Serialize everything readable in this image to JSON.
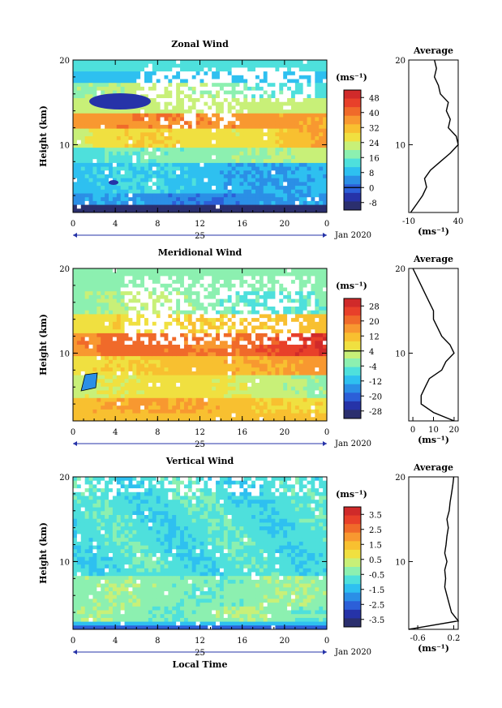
{
  "panels": [
    {
      "id": "zonal",
      "title": "Zonal Wind",
      "ylabel": "Height (km)",
      "yticks": [
        "20",
        "10"
      ],
      "xticks": [
        "0",
        "4",
        "8",
        "12",
        "16",
        "20",
        "0"
      ],
      "day_label": "25",
      "date_label": "Jan 2020",
      "unit_label": "(ms⁻¹)",
      "colorbar_labels": [
        "48",
        "40",
        "32",
        "24",
        "16",
        "8",
        "0",
        "-8"
      ],
      "avg_title": "Average",
      "avg_yticks": [
        "20",
        "10"
      ],
      "avg_xticks": [
        "-10",
        "40"
      ],
      "avg_unit": "(ms⁻¹)"
    },
    {
      "id": "meridional",
      "title": "Meridional Wind",
      "ylabel": "Height (km)",
      "yticks": [
        "20",
        "10"
      ],
      "xticks": [
        "0",
        "4",
        "8",
        "12",
        "16",
        "20",
        "0"
      ],
      "day_label": "25",
      "date_label": "Jan 2020",
      "unit_label": "(ms⁻¹)",
      "colorbar_labels": [
        "28",
        "20",
        "12",
        "4",
        "-4",
        "-12",
        "-20",
        "-28"
      ],
      "avg_title": "Average",
      "avg_yticks": [
        "20",
        "10"
      ],
      "avg_xticks": [
        "0",
        "10",
        "20"
      ],
      "avg_unit": "(ms⁻¹)"
    },
    {
      "id": "vertical",
      "title": "Vertical Wind",
      "ylabel": "Height (km)",
      "yticks": [
        "20",
        "10"
      ],
      "xticks": [
        "0",
        "4",
        "8",
        "12",
        "16",
        "20",
        "0"
      ],
      "day_label": "25",
      "date_label": "Jan 2020",
      "unit_label": "(ms⁻¹)",
      "colorbar_labels": [
        "3.5",
        "2.5",
        "1.5",
        "0.5",
        "-0.5",
        "-1.5",
        "-2.5",
        "-3.5"
      ],
      "avg_title": "Average",
      "avg_yticks": [
        "20",
        "10"
      ],
      "avg_xticks": [
        "-0.6",
        "0.2"
      ],
      "avg_unit": "(ms⁻¹)",
      "xlabel": "Local Time"
    }
  ],
  "palette": [
    "#2b2f6e",
    "#2633a8",
    "#2c5fd8",
    "#2b8fe6",
    "#2ec0f0",
    "#4ee0dc",
    "#8cf0b0",
    "#c8f078",
    "#f0e040",
    "#f8c030",
    "#f89830",
    "#f06a2a",
    "#e8402a",
    "#d02a2a"
  ],
  "chart_data": [
    {
      "type": "heatmap",
      "title": "Zonal Wind",
      "xlabel": "",
      "ylabel": "Height (km)",
      "xlim": [
        0,
        24
      ],
      "ylim": [
        2,
        20
      ],
      "colorbar_levels": [
        -8,
        0,
        8,
        16,
        24,
        32,
        40,
        48
      ],
      "z_approx_by_height": {
        "x": [
          2,
          4,
          6,
          8,
          10,
          12,
          14,
          16,
          18,
          19
        ],
        "z": [
          2,
          12,
          6,
          12,
          28,
          34,
          18,
          20,
          24,
          22
        ]
      }
    },
    {
      "type": "line",
      "title": "Average",
      "xlabel": "(ms⁻¹)",
      "ylabel": "",
      "xlim": [
        -10,
        40
      ],
      "ylim": [
        2,
        20
      ],
      "series": [
        {
          "x": [
            -8,
            -2,
            4,
            8,
            6,
            12,
            22,
            32,
            40,
            38,
            30,
            32,
            28,
            30,
            22,
            20,
            16,
            18,
            16
          ],
          "y": [
            2,
            3,
            4,
            5,
            6,
            7,
            8,
            9,
            10,
            11,
            12,
            13,
            14,
            15,
            16,
            17,
            18,
            19,
            20
          ]
        }
      ]
    },
    {
      "type": "heatmap",
      "title": "Meridional Wind",
      "xlabel": "",
      "ylabel": "Height (km)",
      "xlim": [
        0,
        24
      ],
      "ylim": [
        2,
        20
      ],
      "colorbar_levels": [
        -28,
        -20,
        -12,
        -4,
        4,
        12,
        20,
        28
      ],
      "z_approx_by_height": {
        "x": [
          2,
          4,
          6,
          8,
          10,
          12,
          14,
          16,
          18,
          19
        ],
        "z": [
          18,
          8,
          4,
          10,
          20,
          16,
          6,
          2,
          4,
          2
        ]
      }
    },
    {
      "type": "line",
      "title": "Average",
      "xlabel": "(ms⁻¹)",
      "ylabel": "",
      "xlim": [
        -2,
        22
      ],
      "ylim": [
        2,
        20
      ],
      "series": [
        {
          "x": [
            20,
            10,
            4,
            4,
            6,
            8,
            14,
            16,
            20,
            18,
            14,
            12,
            10,
            10,
            8,
            6,
            4,
            2,
            0
          ],
          "y": [
            2,
            3,
            4,
            5,
            6,
            7,
            8,
            9,
            10,
            11,
            12,
            13,
            14,
            15,
            16,
            17,
            18,
            19,
            20
          ]
        }
      ]
    },
    {
      "type": "heatmap",
      "title": "Vertical Wind",
      "xlabel": "Local Time",
      "ylabel": "Height (km)",
      "xlim": [
        0,
        24
      ],
      "ylim": [
        2,
        20
      ],
      "colorbar_levels": [
        -3.5,
        -2.5,
        -1.5,
        -0.5,
        0.5,
        1.5,
        2.5,
        3.5
      ],
      "z_approx_by_height": {
        "x": [
          2,
          4,
          6,
          8,
          10,
          12,
          14,
          16,
          18,
          19
        ],
        "z": [
          -2.5,
          0.5,
          0.2,
          0.0,
          -0.2,
          -0.3,
          -0.2,
          -0.2,
          -0.1,
          0.0
        ]
      }
    },
    {
      "type": "line",
      "title": "Average",
      "xlabel": "(ms⁻¹)",
      "ylabel": "",
      "xlim": [
        -0.8,
        0.3
      ],
      "ylim": [
        2,
        20
      ],
      "series": [
        {
          "x": [
            -0.8,
            0.3,
            0.15,
            0.1,
            0.05,
            0.0,
            0.02,
            0.0,
            0.05,
            0.0,
            0.03,
            0.05,
            0.08,
            0.05,
            0.1,
            0.12,
            0.15,
            0.18,
            0.2
          ],
          "y": [
            2,
            3,
            4,
            5,
            6,
            7,
            8,
            9,
            10,
            11,
            12,
            13,
            14,
            15,
            16,
            17,
            18,
            19,
            20
          ]
        }
      ]
    }
  ]
}
